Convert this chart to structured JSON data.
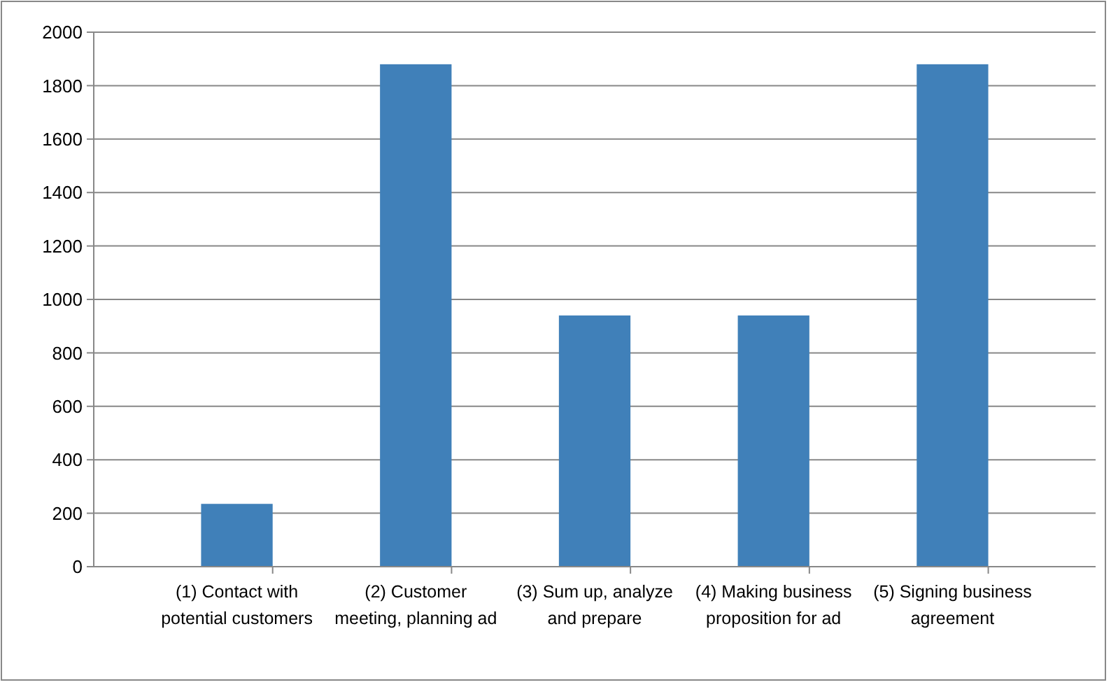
{
  "chart_data": {
    "type": "bar",
    "categories": [
      "(1) Contact with potential customers",
      "(2) Customer meeting, planning ad",
      "(3) Sum up, analyze and prepare",
      "(4) Making business proposition for ad",
      "(5) Signing business agreement"
    ],
    "values": [
      235,
      1880,
      940,
      940,
      1880
    ],
    "color": "#4080b9",
    "ylim": [
      0,
      2000
    ],
    "yticks": [
      0,
      200,
      400,
      600,
      800,
      1000,
      1200,
      1400,
      1600,
      1800,
      2000
    ],
    "grid": "y"
  }
}
